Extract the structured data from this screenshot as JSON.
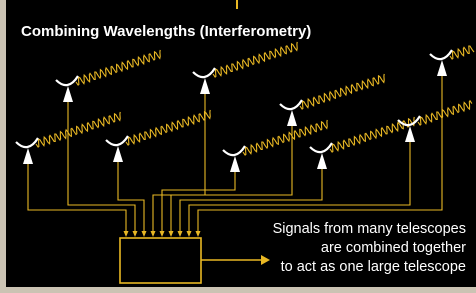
{
  "header": {
    "title": "Combining Wavelengths (Interferometry)"
  },
  "caption": {
    "lines": [
      "Signals from many telescopes",
      "are combined together",
      "to act as one large telescope"
    ]
  }
}
